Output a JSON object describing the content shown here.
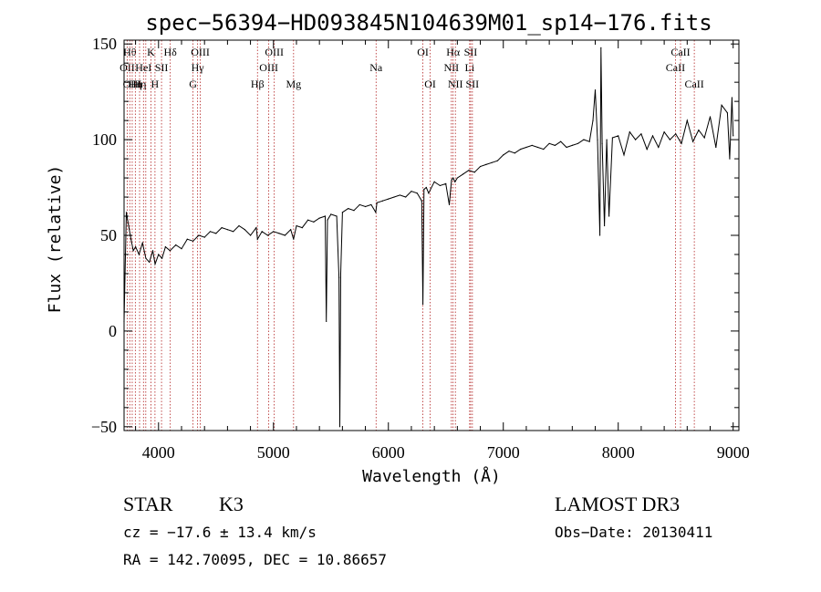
{
  "chart_data": {
    "type": "line",
    "title": "spec−56394−HD093845N104639M01_sp14−176.fits",
    "xlabel": "Wavelength (Å)",
    "ylabel": "Flux (relative)",
    "xlim": [
      3700,
      9050
    ],
    "ylim": [
      -52,
      152
    ],
    "x_ticks": [
      4000,
      5000,
      6000,
      7000,
      8000,
      9000
    ],
    "x_tick_labels": [
      "4000",
      "5000",
      "6000",
      "7000",
      "8000",
      "9000"
    ],
    "y_ticks": [
      -50,
      0,
      50,
      100,
      150
    ],
    "y_tick_labels": [
      "−50",
      "0",
      "50",
      "100",
      "150"
    ],
    "grid": false,
    "series": [
      {
        "x": [
          3700,
          3720,
          3740,
          3760,
          3780,
          3800,
          3830,
          3860,
          3890,
          3920,
          3950,
          3970,
          4000,
          4030,
          4060,
          4100,
          4150,
          4200,
          4250,
          4300,
          4350,
          4400,
          4450,
          4500,
          4550,
          4600,
          4650,
          4700,
          4750,
          4800,
          4850,
          4861,
          4900,
          4950,
          5000,
          5050,
          5100,
          5150,
          5175,
          5200,
          5250,
          5300,
          5350,
          5400,
          5450,
          5460,
          5470,
          5500,
          5550,
          5570,
          5577,
          5585,
          5600,
          5650,
          5700,
          5750,
          5800,
          5850,
          5890,
          5900,
          5950,
          6000,
          6050,
          6100,
          6150,
          6200,
          6250,
          6290,
          6300,
          6310,
          6330,
          6350,
          6400,
          6450,
          6500,
          6530,
          6550,
          6563,
          6580,
          6600,
          6650,
          6700,
          6750,
          6800,
          6850,
          6900,
          6950,
          7000,
          7050,
          7100,
          7150,
          7200,
          7250,
          7300,
          7350,
          7400,
          7450,
          7500,
          7550,
          7600,
          7650,
          7700,
          7750,
          7780,
          7800,
          7820,
          7840,
          7850,
          7860,
          7880,
          7900,
          7920,
          7950,
          8000,
          8050,
          8100,
          8150,
          8200,
          8250,
          8300,
          8350,
          8400,
          8450,
          8500,
          8550,
          8600,
          8650,
          8700,
          8750,
          8800,
          8850,
          8900,
          8950,
          8970,
          8990,
          9000
        ],
        "y": [
          5,
          62,
          55,
          48,
          42,
          44,
          40,
          46,
          38,
          36,
          42,
          35,
          40,
          38,
          44,
          42,
          45,
          43,
          48,
          47,
          50,
          49,
          52,
          51,
          54,
          53,
          52,
          55,
          53,
          50,
          54,
          48,
          52,
          50,
          52,
          51,
          50,
          53,
          48,
          55,
          54,
          58,
          57,
          59,
          60,
          5,
          58,
          61,
          60,
          28,
          -50,
          30,
          62,
          64,
          63,
          66,
          65,
          66,
          62,
          67,
          68,
          69,
          70,
          71,
          70,
          73,
          72,
          68,
          14,
          74,
          75,
          72,
          78,
          76,
          77,
          66,
          79,
          80,
          78,
          80,
          82,
          84,
          83,
          86,
          87,
          88,
          89,
          92,
          94,
          93,
          95,
          96,
          97,
          96,
          95,
          98,
          97,
          99,
          96,
          97,
          98,
          100,
          99,
          110,
          126,
          100,
          50,
          148,
          98,
          55,
          100,
          60,
          101,
          102,
          92,
          104,
          100,
          103,
          95,
          102,
          96,
          104,
          100,
          103,
          98,
          110,
          99,
          105,
          101,
          112,
          96,
          118,
          114,
          90,
          122,
          102
        ],
        "color": "#000000"
      }
    ],
    "line_markers": [
      {
        "wavelength": 3727,
        "label": "OII",
        "row": 2
      },
      {
        "wavelength": 3750,
        "label": "Hθ",
        "row": 1
      },
      {
        "wavelength": 3771,
        "label": "OIII",
        "row": 3
      },
      {
        "wavelength": 3798,
        "label": "Hη",
        "row": 3
      },
      {
        "wavelength": 3835,
        "label": "Hη",
        "row": 3
      },
      {
        "wavelength": 3869,
        "label": "HeI",
        "row": 2
      },
      {
        "wavelength": 3889,
        "label": "",
        "row": 2
      },
      {
        "wavelength": 3934,
        "label": "K",
        "row": 1
      },
      {
        "wavelength": 3969,
        "label": "H",
        "row": 3
      },
      {
        "wavelength": 4026,
        "label": "SII",
        "row": 2
      },
      {
        "wavelength": 4102,
        "label": "Hδ",
        "row": 1
      },
      {
        "wavelength": 4300,
        "label": "G",
        "row": 3
      },
      {
        "wavelength": 4340,
        "label": "Hγ",
        "row": 2
      },
      {
        "wavelength": 4363,
        "label": "OIII",
        "row": 1
      },
      {
        "wavelength": 4861,
        "label": "Hβ",
        "row": 3
      },
      {
        "wavelength": 4959,
        "label": "OIII",
        "row": 2
      },
      {
        "wavelength": 5007,
        "label": "OIII",
        "row": 1
      },
      {
        "wavelength": 5175,
        "label": "Mg",
        "row": 3
      },
      {
        "wavelength": 5893,
        "label": "Na",
        "row": 2
      },
      {
        "wavelength": 6300,
        "label": "OI",
        "row": 1
      },
      {
        "wavelength": 6364,
        "label": "OI",
        "row": 3
      },
      {
        "wavelength": 6548,
        "label": "NII",
        "row": 2
      },
      {
        "wavelength": 6563,
        "label": "Hα",
        "row": 1
      },
      {
        "wavelength": 6583,
        "label": "NII",
        "row": 3
      },
      {
        "wavelength": 6707,
        "label": "Li",
        "row": 2
      },
      {
        "wavelength": 6716,
        "label": "SII",
        "row": 1
      },
      {
        "wavelength": 6731,
        "label": "SII",
        "row": 3
      },
      {
        "wavelength": 8498,
        "label": "CaII",
        "row": 2
      },
      {
        "wavelength": 8542,
        "label": "CaII",
        "row": 1
      },
      {
        "wavelength": 8662,
        "label": "CaII",
        "row": 3
      }
    ]
  },
  "info": {
    "class": "STAR",
    "subclass": "K3",
    "survey": "LAMOST DR3",
    "redshift": "cz = −17.6 ± 13.4 km/s",
    "obs_date": "Obs−Date: 20130411",
    "coords": "RA = 142.70095, DEC =  10.86657"
  },
  "colors": {
    "marker_line": "#b22222",
    "spectrum": "#000000",
    "axes": "#000000"
  }
}
